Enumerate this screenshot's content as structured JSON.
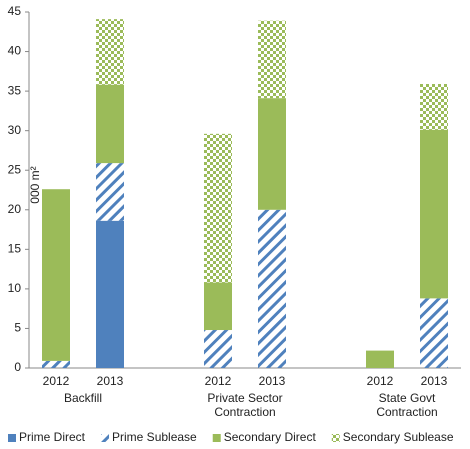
{
  "chart_data": {
    "type": "stacked_bar",
    "y_label": "000 m²",
    "categories": [
      "2012",
      "2013",
      null,
      "2012",
      "2013",
      null,
      "2012",
      "2013"
    ],
    "group_labels": [
      [
        "Backfill"
      ],
      [
        "Private Sector",
        "Contraction"
      ],
      [
        "State Govt",
        "Contraction"
      ]
    ],
    "series": [
      {
        "name": "Prime Direct",
        "color": "#4f81bd",
        "pattern": "solid",
        "values": [
          0,
          18.6,
          null,
          0,
          0,
          null,
          0,
          0
        ]
      },
      {
        "name": "Prime Sublease",
        "color": "#4f81bd",
        "pattern": "hatch",
        "values": [
          0.9,
          7.3,
          null,
          4.8,
          20,
          null,
          0,
          8.8
        ]
      },
      {
        "name": "Secondary Direct",
        "color": "#9bbb59",
        "pattern": "solid",
        "values": [
          21.7,
          9.9,
          null,
          6,
          14.1,
          null,
          2.2,
          21.3
        ]
      },
      {
        "name": "Secondary Sublease",
        "color": "#9bbb59",
        "pattern": "check",
        "values": [
          0,
          8.3,
          null,
          18.8,
          9.8,
          null,
          0,
          5.8
        ]
      }
    ],
    "ylim": [
      0,
      45
    ],
    "yticks": [
      0,
      5,
      10,
      15,
      20,
      25,
      30,
      35,
      40,
      45
    ],
    "legend": "bottom"
  }
}
